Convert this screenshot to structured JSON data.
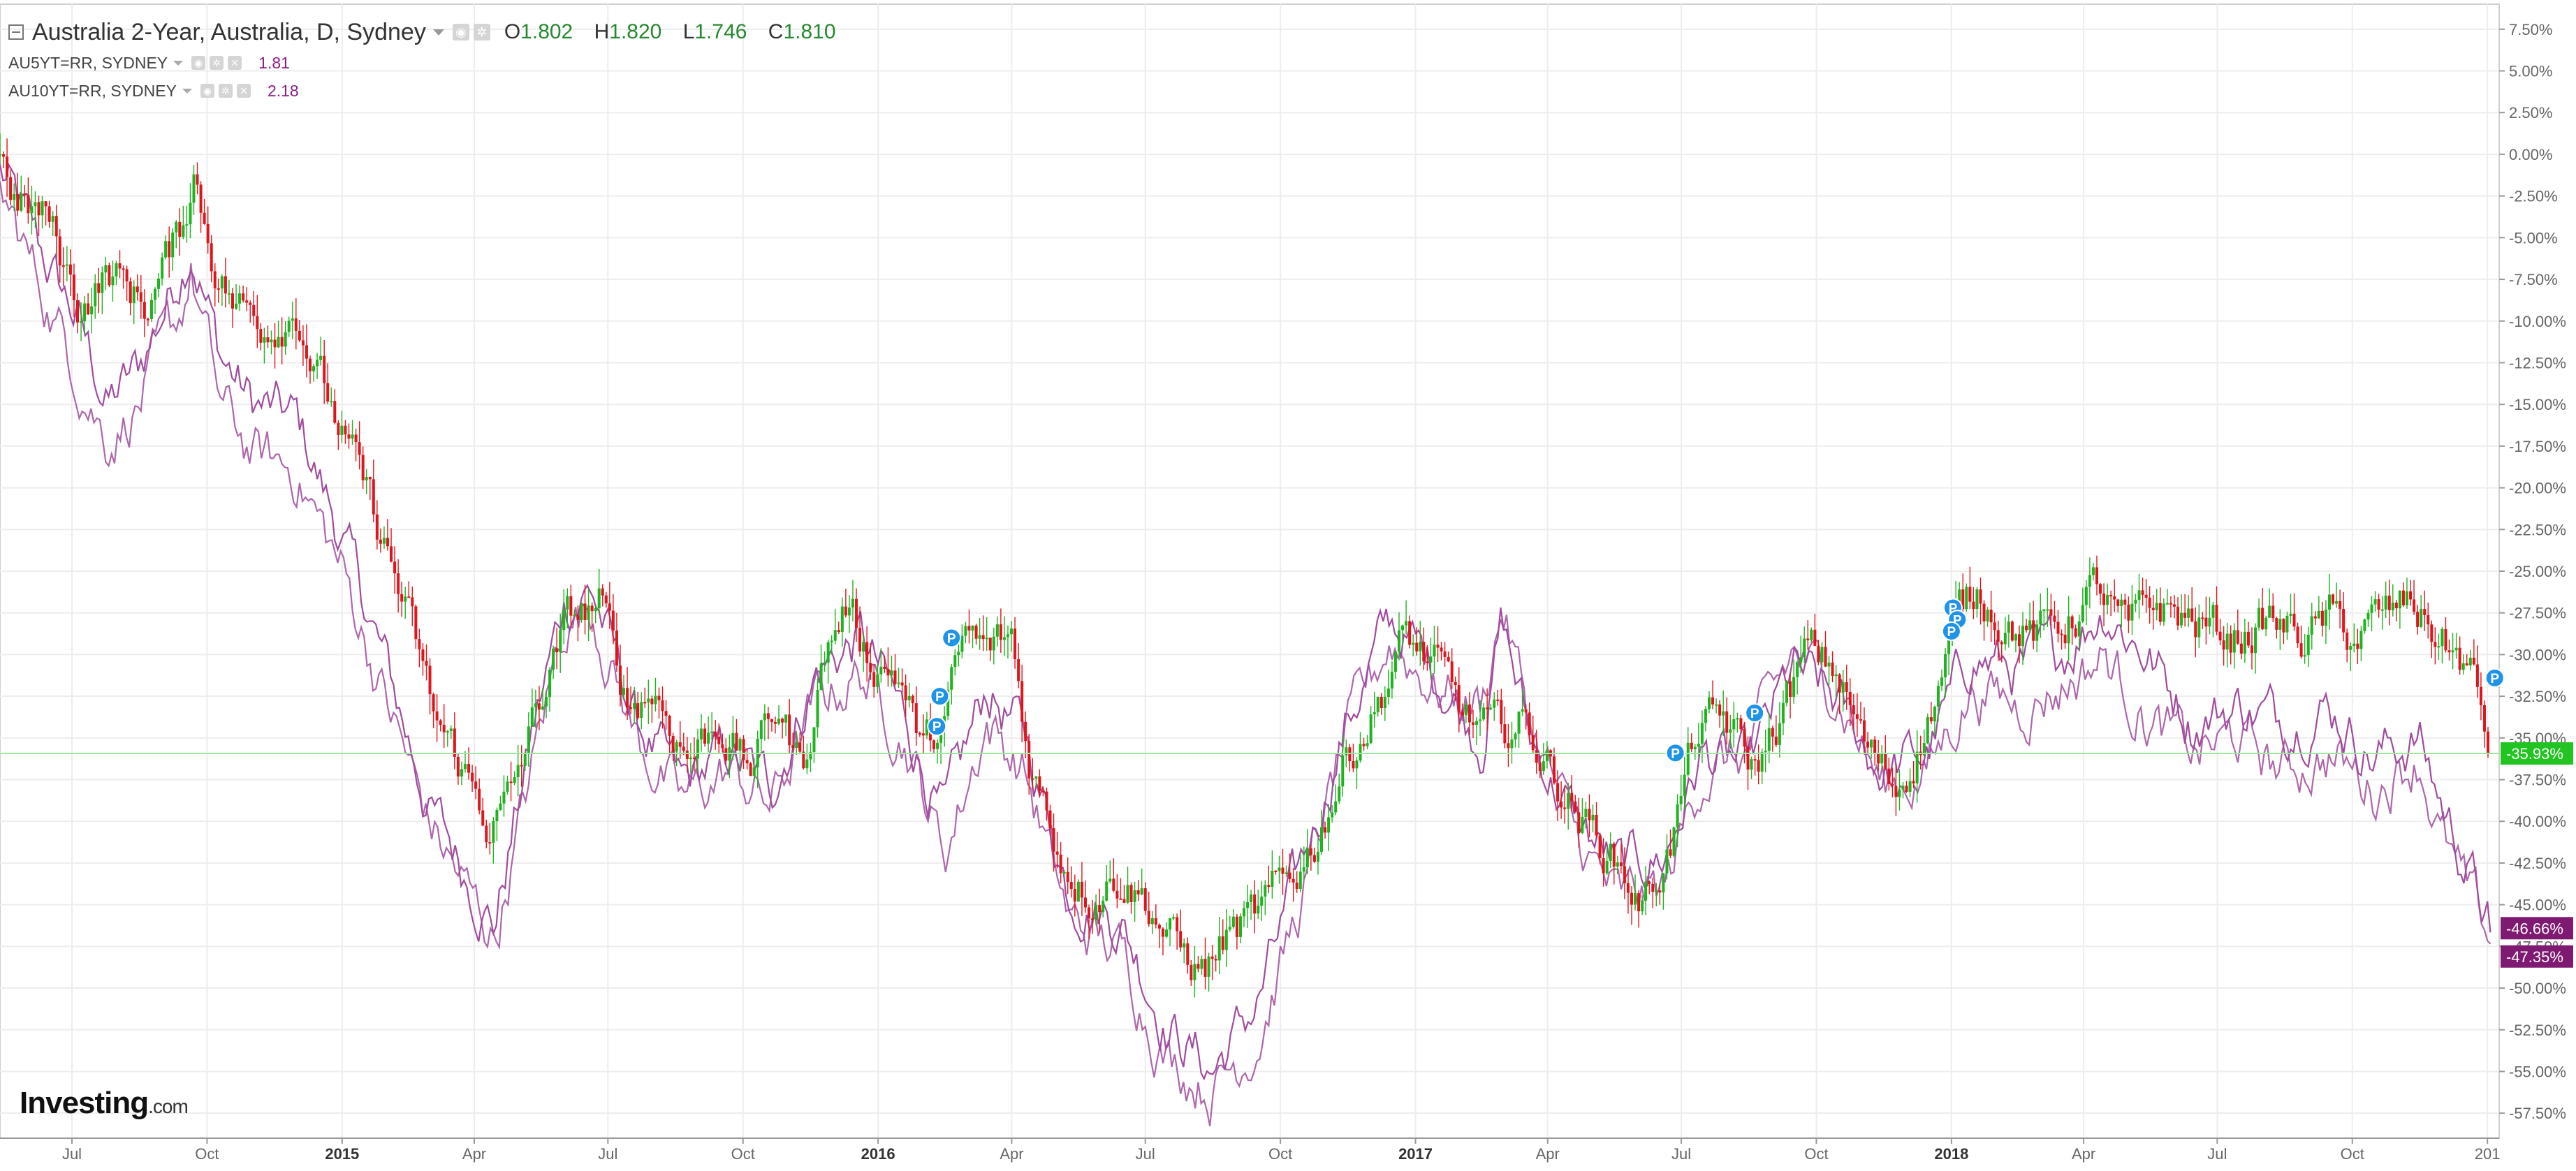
{
  "header": {
    "title": "Australia 2-Year, Australia, D, Sydney",
    "ohlc": {
      "o_label": "O",
      "o": "1.802",
      "h_label": "H",
      "h": "1.820",
      "l_label": "L",
      "l": "1.746",
      "c_label": "C",
      "c": "1.810"
    },
    "overlays": [
      {
        "symbol": "AU5YT=RR, SYDNEY",
        "value": "1.81"
      },
      {
        "symbol": "AU10YT=RR, SYDNEY",
        "value": "2.18"
      }
    ]
  },
  "logo": {
    "brand": "Investing",
    "suffix": ".com"
  },
  "colors": {
    "up": "#1fb31f",
    "down": "#e0151b",
    "overlay": "#a04b9e",
    "current_line": "#9ee59e",
    "marker": "#1f93e8",
    "axis_text": "#666666"
  },
  "chart_data": {
    "type": "candlestick",
    "y_axis": {
      "unit": "%",
      "range": [
        -59,
        9
      ],
      "ticks": [
        "7.50%",
        "5.00%",
        "2.50%",
        "0.00%",
        "-2.50%",
        "-5.00%",
        "-7.50%",
        "-10.00%",
        "-12.50%",
        "-15.00%",
        "-17.50%",
        "-20.00%",
        "-22.50%",
        "-25.00%",
        "-27.50%",
        "-30.00%",
        "-32.50%",
        "-35.00%",
        "-37.50%",
        "-40.00%",
        "-42.50%",
        "-45.00%",
        "-47.50%",
        "-50.00%",
        "-52.50%",
        "-55.00%",
        "-57.50%"
      ],
      "tick_values": [
        7.5,
        5,
        2.5,
        0,
        -2.5,
        -5,
        -7.5,
        -10,
        -12.5,
        -15,
        -17.5,
        -20,
        -22.5,
        -25,
        -27.5,
        -30,
        -32.5,
        -35,
        -37.5,
        -40,
        -42.5,
        -45,
        -47.5,
        -50,
        -52.5,
        -55,
        -57.5
      ]
    },
    "x_axis": {
      "range": [
        "2014-05-13",
        "2019-01-09"
      ],
      "labels": [
        "Jul",
        "Oct",
        "2015",
        "Apr",
        "Jul",
        "Oct",
        "2016",
        "Apr",
        "Jul",
        "Oct",
        "2017",
        "Apr",
        "Jul",
        "Oct",
        "2018",
        "Apr",
        "Jul",
        "Oct",
        "201"
      ],
      "label_dates": [
        "2014-07-01",
        "2014-10-01",
        "2015-01-01",
        "2015-04-01",
        "2015-07-01",
        "2015-10-01",
        "2016-01-01",
        "2016-04-01",
        "2016-07-01",
        "2016-10-01",
        "2017-01-01",
        "2017-04-01",
        "2017-07-01",
        "2017-10-01",
        "2018-01-01",
        "2018-04-01",
        "2018-07-01",
        "2018-10-01",
        "2019-01-01"
      ],
      "bold": [
        "2015",
        "2016",
        "2017",
        "2018"
      ]
    },
    "grid": true,
    "series": [
      {
        "name": "Australia 2-Year",
        "style": "candles",
        "keypoints": [
          [
            "2014-05-13",
            0
          ],
          [
            "2014-05-25",
            -3
          ],
          [
            "2014-06-15",
            -4
          ],
          [
            "2014-07-05",
            -9
          ],
          [
            "2014-07-25",
            -7
          ],
          [
            "2014-08-20",
            -9
          ],
          [
            "2014-09-12",
            -5
          ],
          [
            "2014-09-22",
            -1
          ],
          [
            "2014-10-05",
            -6
          ],
          [
            "2014-10-20",
            -9
          ],
          [
            "2014-11-10",
            -10
          ],
          [
            "2014-12-01",
            -9
          ],
          [
            "2014-12-15",
            -13
          ],
          [
            "2015-01-10",
            -19
          ],
          [
            "2015-02-01",
            -24
          ],
          [
            "2015-02-15",
            -28
          ],
          [
            "2015-03-05",
            -34
          ],
          [
            "2015-03-25",
            -37
          ],
          [
            "2015-04-10",
            -40
          ],
          [
            "2015-04-25",
            -39
          ],
          [
            "2015-05-15",
            -33
          ],
          [
            "2015-06-05",
            -28
          ],
          [
            "2015-06-25",
            -27
          ],
          [
            "2015-07-15",
            -33
          ],
          [
            "2015-08-01",
            -32
          ],
          [
            "2015-08-25",
            -36
          ],
          [
            "2015-09-15",
            -34
          ],
          [
            "2015-10-05",
            -37
          ],
          [
            "2015-10-25",
            -33
          ],
          [
            "2015-11-10",
            -37
          ],
          [
            "2015-11-25",
            -30
          ],
          [
            "2015-12-10",
            -27
          ],
          [
            "2015-12-25",
            -30
          ],
          [
            "2016-01-15",
            -31
          ],
          [
            "2016-02-01",
            -36
          ],
          [
            "2016-02-15",
            -34
          ],
          [
            "2016-03-01",
            -29
          ],
          [
            "2016-03-15",
            -30
          ],
          [
            "2016-04-01",
            -29
          ],
          [
            "2016-04-12",
            -36
          ],
          [
            "2016-05-05",
            -42
          ],
          [
            "2016-05-25",
            -44
          ],
          [
            "2016-06-15",
            -43
          ],
          [
            "2016-07-05",
            -45
          ],
          [
            "2016-07-25",
            -48
          ],
          [
            "2016-08-10",
            -49
          ],
          [
            "2016-08-25",
            -47
          ],
          [
            "2016-09-15",
            -46
          ],
          [
            "2016-10-05",
            -44
          ],
          [
            "2016-10-25",
            -41
          ],
          [
            "2016-11-15",
            -36
          ],
          [
            "2016-12-05",
            -33
          ],
          [
            "2016-12-25",
            -29
          ],
          [
            "2017-01-15",
            -31
          ],
          [
            "2017-02-05",
            -34
          ],
          [
            "2017-02-25",
            -35
          ],
          [
            "2017-03-15",
            -34
          ],
          [
            "2017-04-05",
            -37
          ],
          [
            "2017-04-25",
            -40
          ],
          [
            "2017-05-15",
            -42
          ],
          [
            "2017-06-05",
            -45
          ],
          [
            "2017-06-25",
            -41
          ],
          [
            "2017-07-10",
            -35
          ],
          [
            "2017-07-30",
            -34
          ],
          [
            "2017-08-20",
            -37
          ],
          [
            "2017-09-10",
            -33
          ],
          [
            "2017-09-25",
            -30
          ],
          [
            "2017-10-15",
            -31
          ],
          [
            "2017-11-05",
            -36
          ],
          [
            "2017-11-25",
            -38
          ],
          [
            "2017-12-15",
            -34
          ],
          [
            "2018-01-05",
            -28
          ],
          [
            "2018-01-20",
            -26
          ],
          [
            "2018-02-10",
            -28
          ],
          [
            "2018-03-01",
            -29
          ],
          [
            "2018-03-20",
            -28
          ],
          [
            "2018-04-10",
            -26
          ],
          [
            "2018-05-01",
            -29
          ],
          [
            "2018-05-20",
            -27
          ],
          [
            "2018-06-15",
            -28
          ],
          [
            "2018-07-10",
            -29
          ],
          [
            "2018-08-05",
            -28
          ],
          [
            "2018-08-30",
            -29
          ],
          [
            "2018-09-15",
            -28
          ],
          [
            "2018-10-01",
            -29
          ],
          [
            "2018-10-20",
            -28
          ],
          [
            "2018-11-10",
            -27
          ],
          [
            "2018-11-30",
            -29
          ],
          [
            "2018-12-20",
            -31
          ],
          [
            "2019-01-03",
            -35.93
          ]
        ]
      },
      {
        "name": "AU5YT=RR, SYDNEY",
        "style": "line",
        "last": "-46.66%",
        "keypoints": [
          [
            "2014-05-13",
            -1
          ],
          [
            "2014-06-10",
            -6
          ],
          [
            "2014-07-05",
            -10
          ],
          [
            "2014-07-25",
            -15
          ],
          [
            "2014-08-15",
            -13
          ],
          [
            "2014-09-12",
            -7
          ],
          [
            "2014-09-20",
            -5
          ],
          [
            "2014-10-10",
            -12
          ],
          [
            "2014-11-01",
            -15
          ],
          [
            "2014-12-01",
            -16
          ],
          [
            "2015-01-01",
            -23
          ],
          [
            "2015-02-01",
            -31
          ],
          [
            "2015-03-01",
            -39
          ],
          [
            "2015-04-01",
            -44
          ],
          [
            "2015-04-15",
            -46
          ],
          [
            "2015-05-10",
            -35
          ],
          [
            "2015-06-01",
            -27
          ],
          [
            "2015-06-20",
            -26
          ],
          [
            "2015-07-20",
            -34
          ],
          [
            "2015-08-20",
            -38
          ],
          [
            "2015-09-20",
            -36
          ],
          [
            "2015-10-20",
            -38
          ],
          [
            "2015-11-20",
            -31
          ],
          [
            "2015-12-20",
            -29
          ],
          [
            "2016-01-20",
            -34
          ],
          [
            "2016-02-15",
            -40
          ],
          [
            "2016-03-15",
            -32
          ],
          [
            "2016-04-10",
            -35
          ],
          [
            "2016-05-10",
            -44
          ],
          [
            "2016-06-15",
            -46
          ],
          [
            "2016-07-15",
            -52
          ],
          [
            "2016-08-15",
            -55
          ],
          [
            "2016-09-15",
            -51
          ],
          [
            "2016-10-15",
            -43
          ],
          [
            "2016-11-15",
            -34
          ],
          [
            "2016-12-15",
            -28
          ],
          [
            "2017-01-15",
            -31
          ],
          [
            "2017-02-15",
            -35
          ],
          [
            "2017-03-01",
            -28
          ],
          [
            "2017-03-20",
            -35
          ],
          [
            "2017-04-20",
            -40
          ],
          [
            "2017-05-20",
            -43
          ],
          [
            "2017-06-20",
            -42
          ],
          [
            "2017-07-15",
            -36
          ],
          [
            "2017-08-15",
            -37
          ],
          [
            "2017-09-15",
            -31
          ],
          [
            "2017-10-15",
            -33
          ],
          [
            "2017-11-15",
            -37
          ],
          [
            "2017-12-15",
            -36
          ],
          [
            "2018-01-15",
            -30
          ],
          [
            "2018-02-15",
            -31
          ],
          [
            "2018-03-15",
            -30
          ],
          [
            "2018-04-15",
            -27
          ],
          [
            "2018-05-15",
            -30
          ],
          [
            "2018-06-15",
            -34
          ],
          [
            "2018-07-15",
            -33
          ],
          [
            "2018-08-15",
            -34
          ],
          [
            "2018-09-15",
            -33
          ],
          [
            "2018-10-15",
            -36
          ],
          [
            "2018-11-15",
            -35
          ],
          [
            "2018-12-01",
            -39
          ],
          [
            "2018-12-20",
            -43
          ],
          [
            "2019-01-04",
            -46.66
          ]
        ]
      },
      {
        "name": "AU10YT=RR, SYDNEY",
        "style": "line",
        "last": "-47.35%",
        "keypoints": [
          [
            "2014-05-13",
            -2
          ],
          [
            "2014-06-10",
            -8
          ],
          [
            "2014-07-05",
            -13
          ],
          [
            "2014-07-25",
            -17
          ],
          [
            "2014-08-15",
            -15
          ],
          [
            "2014-09-12",
            -10
          ],
          [
            "2014-09-20",
            -7
          ],
          [
            "2014-10-10",
            -15
          ],
          [
            "2014-11-01",
            -18
          ],
          [
            "2014-12-01",
            -19
          ],
          [
            "2015-01-01",
            -25
          ],
          [
            "2015-02-01",
            -33
          ],
          [
            "2015-03-01",
            -40
          ],
          [
            "2015-04-01",
            -45
          ],
          [
            "2015-04-15",
            -47
          ],
          [
            "2015-05-10",
            -37
          ],
          [
            "2015-06-01",
            -28
          ],
          [
            "2015-06-20",
            -27
          ],
          [
            "2015-07-20",
            -35
          ],
          [
            "2015-08-20",
            -39
          ],
          [
            "2015-09-20",
            -37
          ],
          [
            "2015-10-20",
            -39
          ],
          [
            "2015-11-20",
            -33
          ],
          [
            "2015-12-20",
            -31
          ],
          [
            "2016-01-20",
            -35
          ],
          [
            "2016-02-15",
            -42
          ],
          [
            "2016-03-15",
            -34
          ],
          [
            "2016-04-10",
            -37
          ],
          [
            "2016-05-10",
            -46
          ],
          [
            "2016-06-15",
            -48
          ],
          [
            "2016-07-15",
            -54
          ],
          [
            "2016-08-15",
            -56
          ],
          [
            "2016-09-15",
            -53
          ],
          [
            "2016-10-15",
            -45
          ],
          [
            "2016-11-15",
            -35
          ],
          [
            "2016-12-15",
            -29
          ],
          [
            "2017-01-15",
            -32
          ],
          [
            "2017-02-15",
            -33
          ],
          [
            "2017-03-01",
            -27
          ],
          [
            "2017-03-20",
            -34
          ],
          [
            "2017-04-20",
            -41
          ],
          [
            "2017-05-20",
            -45
          ],
          [
            "2017-06-20",
            -44
          ],
          [
            "2017-07-15",
            -37
          ],
          [
            "2017-08-15",
            -36
          ],
          [
            "2017-09-15",
            -30
          ],
          [
            "2017-10-15",
            -32
          ],
          [
            "2017-11-15",
            -38
          ],
          [
            "2017-12-15",
            -37
          ],
          [
            "2018-01-15",
            -32
          ],
          [
            "2018-02-15",
            -33
          ],
          [
            "2018-03-15",
            -32
          ],
          [
            "2018-04-15",
            -30
          ],
          [
            "2018-05-15",
            -34
          ],
          [
            "2018-06-15",
            -36
          ],
          [
            "2018-07-15",
            -35
          ],
          [
            "2018-08-15",
            -37
          ],
          [
            "2018-09-15",
            -36
          ],
          [
            "2018-10-15",
            -38
          ],
          [
            "2018-11-15",
            -36
          ],
          [
            "2018-12-01",
            -41
          ],
          [
            "2018-12-20",
            -45
          ],
          [
            "2019-01-04",
            -47.35
          ]
        ]
      }
    ],
    "current_value": {
      "value": -35.93,
      "label": "-35.93%"
    },
    "markers": [
      {
        "label": "P",
        "date": "2016-02-20",
        "value": -29
      },
      {
        "label": "P",
        "date": "2016-02-12",
        "value": -32.5
      },
      {
        "label": "P",
        "date": "2016-02-10",
        "value": -34.3
      },
      {
        "label": "P",
        "date": "2017-06-27",
        "value": -35.9
      },
      {
        "label": "P",
        "date": "2017-08-20",
        "value": -33.5
      },
      {
        "label": "P",
        "date": "2018-01-02",
        "value": -27.2
      },
      {
        "label": "P",
        "date": "2018-01-05",
        "value": -27.9
      },
      {
        "label": "P",
        "date": "2018-01-01",
        "value": -28.6
      },
      {
        "label": "P",
        "date": "2019-01-06",
        "value": -31.4
      }
    ]
  }
}
